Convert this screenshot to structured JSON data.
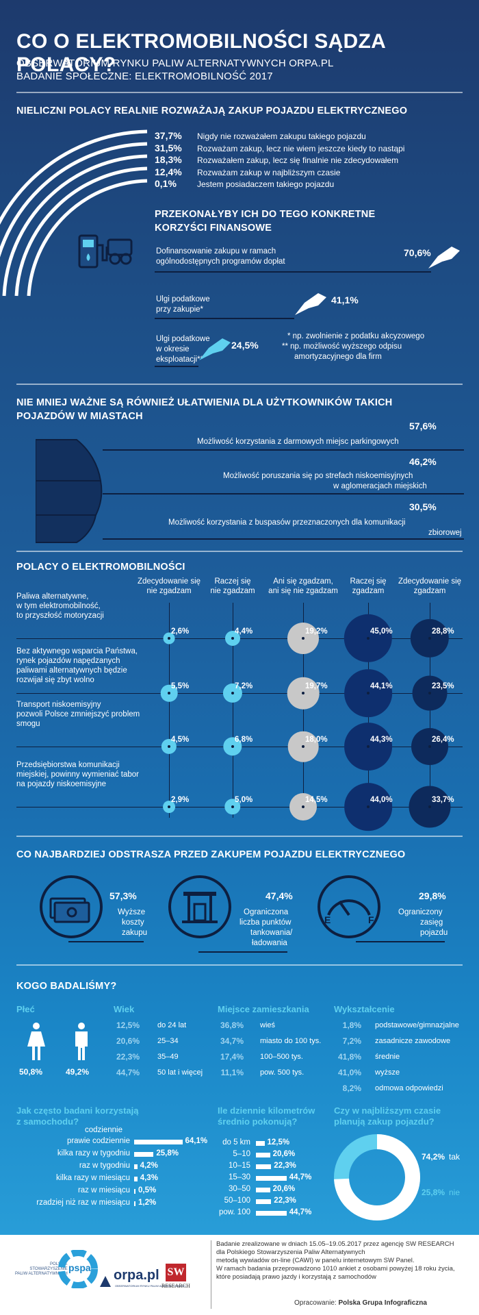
{
  "header": {
    "title": "CO O ELEKTROMOBILNOŚCI SĄDZA POLACY?",
    "line1": "OBSERWATORIUM RYNKU PALIW ALTERNATYWNYCH ORPA.PL",
    "line2": "BADANIE SPOŁECZNE: ELEKTROMOBILNOŚĆ 2017"
  },
  "colors": {
    "dark": "#0d1f40",
    "navy": "#12305e",
    "cyan": "#5fd0ef",
    "grey": "#c8c8c8",
    "deep": "#0e2f6e"
  },
  "section1": {
    "title": "NIELICZNI POLACY REALNIE ROZWAŻAJĄ ZAKUP POJAZDU ELEKTRYCZNEGO",
    "items": [
      {
        "pct": "37,7%",
        "label": "Nigdy nie rozważałem zakupu takiego pojazdu"
      },
      {
        "pct": "31,5%",
        "label": "Rozważam zakup, lecz nie wiem jeszcze kiedy to nastąpi"
      },
      {
        "pct": "18,3%",
        "label": "Rozważałem zakup, lecz się finalnie nie zdecydowałem"
      },
      {
        "pct": "12,4%",
        "label": "Rozważam zakup w najbliższym czasie"
      },
      {
        "pct": "0,1%",
        "label": "Jestem posiadaczem takiego pojazdu"
      }
    ]
  },
  "section2": {
    "title_line1": "PRZEKONAŁYBY ICH DO TEGO KONKRETNE",
    "title_line2": "KORZYŚCI FINANSOWE",
    "items": [
      {
        "pct": "70,6%",
        "label1": "Dofinansowanie zakupu w ramach",
        "label2": "ogólnodostępnych programów dopłat",
        "label3": ""
      },
      {
        "pct": "41,1%",
        "label1": "Ulgi podatkowe",
        "label2": "przy zakupie*",
        "label3": ""
      },
      {
        "pct": "24,5%",
        "label1": "Ulgi podatkowe",
        "label2": "w okresie",
        "label3": "eksploatacji**"
      }
    ],
    "note1": "* np. zwolnienie z podatku akcyzowego",
    "note2a": "** np. możliwość wyższego odpisu",
    "note2b": "amortyzacyjnego dla firm"
  },
  "section3": {
    "title_line1": "NIE MNIEJ WAŻNE SĄ RÓWNIEŻ UŁATWIENIA DLA UŻYTKOWNIKÓW TAKICH",
    "title_line2": "POJAZDÓW W MIASTACH",
    "items": [
      {
        "pct": "57,6%",
        "label1": "Możliwość korzystania z darmowych miejsc parkingowych",
        "label2": ""
      },
      {
        "pct": "46,2%",
        "label1": "Możliwość poruszania się po strefach niskoemisyjnych",
        "label2": "w aglomeracjach miejskich"
      },
      {
        "pct": "30,5%",
        "label1": "Możliwość korzystania z buspasów przeznaczonych dla komunikacji",
        "label2": "zbiorowej"
      }
    ]
  },
  "section4": {
    "title": "POLACY O ELEKTROMOBILNOŚCI",
    "columns": [
      {
        "l1": "Zdecydowanie się",
        "l2": "nie zgadzam"
      },
      {
        "l1": "Raczej się",
        "l2": "nie zgadzam"
      },
      {
        "l1": "Ani się zgadzam,",
        "l2": "ani się nie zgadzam"
      },
      {
        "l1": "Raczej się",
        "l2": "zgadzam"
      },
      {
        "l1": "Zdecydowanie się",
        "l2": "zgadzam"
      }
    ],
    "statements": [
      {
        "lines": [
          "Paliwa alternatywne,",
          "w tym elektromobilność,",
          "to przyszłość motoryzacji"
        ]
      },
      {
        "lines": [
          "Bez aktywnego wsparcia Państwa,",
          "rynek pojazdów napędzanych",
          "paliwami alternatywnych będzie",
          "rozwijał się zbyt wolno"
        ]
      },
      {
        "lines": [
          "Transport niskoemisyjny",
          "pozwoli Polsce zmniejszyć problem",
          "smogu"
        ]
      },
      {
        "lines": [
          "Przedsiębiorstwa komunikacji",
          "miejskiej, powinny wymieniać tabor",
          "na pojazdy niskoemisyjne"
        ]
      }
    ]
  },
  "chart_data": [
    {
      "type": "bar",
      "title": "NIELICZNI POLACY REALNIE ROZWAŻAJĄ ZAKUP POJAZDU ELEKTRYCZNEGO",
      "categories": [
        "Nigdy nie rozważałem zakupu takiego pojazdu",
        "Rozważam zakup, lecz nie wiem jeszcze kiedy to nastąpi",
        "Rozważałem zakup, lecz się finalnie nie zdecydowałem",
        "Rozważam zakup w najbliższym czasie",
        "Jestem posiadaczem takiego pojazdu"
      ],
      "values": [
        37.7,
        31.5,
        18.3,
        12.4,
        0.1
      ]
    },
    {
      "type": "bar",
      "title": "PRZEKONAŁYBY ICH DO TEGO KONKRETNE KORZYŚCI FINANSOWE",
      "categories": [
        "Dofinansowanie zakupu w ramach ogólnodostępnych programów dopłat",
        "Ulgi podatkowe przy zakupie*",
        "Ulgi podatkowe w okresie eksploatacji**"
      ],
      "values": [
        70.6,
        41.1,
        24.5
      ]
    },
    {
      "type": "bar",
      "title": "NIE MNIEJ WAŻNE SĄ RÓWNIEŻ UŁATWIENIA DLA UŻYTKOWNIKÓW TAKICH POJAZDÓW W MIASTACH",
      "categories": [
        "Możliwość korzystania z darmowych miejsc parkingowych",
        "Możliwość poruszania się po strefach niskoemisyjnych w aglomeracjach miejskich",
        "Możliwość korzystania z buspasów przeznaczonych dla komunikacji zbiorowej"
      ],
      "values": [
        57.6,
        46.2,
        30.5
      ]
    },
    {
      "type": "scatter",
      "title": "POLACY O ELEKTROMOBILNOŚCI",
      "categories": [
        "Zdecydowanie się nie zgadzam",
        "Raczej się nie zgadzam",
        "Ani się zgadzam, ani się nie zgadzam",
        "Raczej się zgadzam",
        "Zdecydowanie się zgadzam"
      ],
      "series": [
        {
          "values": [
            2.6,
            4.4,
            19.2,
            45.0,
            28.8
          ],
          "labels": [
            "2,6%",
            "4,4%",
            "19,2%",
            "45,0%",
            "28,8%"
          ]
        },
        {
          "values": [
            5.5,
            7.2,
            19.7,
            44.1,
            23.5
          ],
          "labels": [
            "5,5%",
            "7,2%",
            "19,7%",
            "44,1%",
            "23,5%"
          ]
        },
        {
          "values": [
            4.5,
            6.8,
            18.0,
            44.3,
            26.4
          ],
          "labels": [
            "4,5%",
            "6,8%",
            "18,0%",
            "44,3%",
            "26,4%"
          ]
        },
        {
          "values": [
            2.9,
            5.0,
            14.5,
            44.0,
            33.7
          ],
          "labels": [
            "2,9%",
            "5,0%",
            "14,5%",
            "44,0%",
            "33,7%"
          ]
        }
      ]
    },
    {
      "type": "bar",
      "title": "CO NAJBARDZIEJ ODSTRASZA PRZED ZAKUPEM POJAZDU ELEKTRYCZNEGO",
      "categories": [
        "Wyższe koszty zakupu",
        "Ograniczona liczba punktów tankowania/ ładowania",
        "Ograniczony zasięg pojazdu"
      ],
      "values": [
        57.3,
        47.4,
        29.8
      ]
    },
    {
      "type": "bar",
      "title": "Jak często badani korzystają z samochodu?",
      "categories": [
        "codziennie prawie codziennie",
        "kilka razy w tygodniu",
        "raz w tygodniu",
        "kilka razy w miesiącu",
        "raz w miesiącu",
        "rzadziej niż raz w miesiącu"
      ],
      "values": [
        64.1,
        25.8,
        4.2,
        4.3,
        0.5,
        1.2
      ]
    },
    {
      "type": "bar",
      "title": "Ile dziennie kilometrów średnio pokonują?",
      "categories": [
        "do 5 km",
        "5–10",
        "10–15",
        "15–30",
        "30–50",
        "50–100",
        "pow. 100"
      ],
      "values": [
        12.5,
        20.6,
        22.3,
        44.7,
        20.6,
        22.3,
        44.7
      ]
    },
    {
      "type": "pie",
      "title": "Czy w najbliższym czasie planują zakup pojazdu?",
      "categories": [
        "tak",
        "nie"
      ],
      "values": [
        74.2,
        25.8
      ]
    }
  ],
  "section5": {
    "title": "CO NAJBARDZIEJ ODSTRASZA PRZED ZAKUPEM POJAZDU ELEKTRYCZNEGO",
    "items": [
      {
        "pct": "57,3%",
        "lines": [
          "Wyższe",
          "koszty",
          "zakupu"
        ]
      },
      {
        "pct": "47,4%",
        "lines": [
          "Ograniczona",
          "liczba punktów",
          "tankowania/",
          "ładowania"
        ]
      },
      {
        "pct": "29,8%",
        "lines": [
          "Ograniczony",
          "zasięg",
          "pojazdu"
        ]
      }
    ]
  },
  "survey": {
    "title": "KOGO BADALIŚMY?",
    "gender": {
      "head": "Płeć",
      "female": "50,8%",
      "male": "49,2%"
    },
    "age": {
      "head": "Wiek",
      "rows": [
        [
          "12,5%",
          "do 24 lat"
        ],
        [
          "20,6%",
          "25–34"
        ],
        [
          "22,3%",
          "35–49"
        ],
        [
          "44,7%",
          "50 lat i więcej"
        ]
      ]
    },
    "place": {
      "head": "Miejsce zamieszkania",
      "rows": [
        [
          "36,8%",
          "wieś"
        ],
        [
          "34,7%",
          "miasto do 100 tys."
        ],
        [
          "17,4%",
          "100–500 tys."
        ],
        [
          "11,1%",
          "pow. 500 tys."
        ]
      ]
    },
    "edu": {
      "head": "Wykształcenie",
      "rows": [
        [
          "1,8%",
          "podstawowe/gimnazjalne"
        ],
        [
          "7,2%",
          "zasadnicze zawodowe"
        ],
        [
          "41,8%",
          "średnie"
        ],
        [
          "41,0%",
          "wyższe"
        ],
        [
          "8,2%",
          "odmowa odpowiedzi"
        ]
      ]
    },
    "usage": {
      "head1": "Jak często badani korzystają",
      "head2": "z samochodu?",
      "top": "codziennie",
      "rows": [
        [
          "prawie codziennie",
          "64,1%"
        ],
        [
          "kilka razy w tygodniu",
          "25,8%"
        ],
        [
          "raz w tygodniu",
          "4,2%"
        ],
        [
          "kilka razy w miesiącu",
          "4,3%"
        ],
        [
          "raz w miesiącu",
          "0,5%"
        ],
        [
          "rzadziej niż raz w miesiącu",
          "1,2%"
        ]
      ]
    },
    "km": {
      "head1": "Ile dziennie kilometrów",
      "head2": "średnio pokonują?",
      "rows": [
        [
          "do 5 km",
          "12,5%"
        ],
        [
          "5–10",
          "20,6%"
        ],
        [
          "10–15",
          "22,3%"
        ],
        [
          "15–30",
          "44,7%"
        ],
        [
          "30–50",
          "20,6%"
        ],
        [
          "50–100",
          "22,3%"
        ],
        [
          "pow. 100",
          "44,7%"
        ]
      ]
    },
    "plan": {
      "head1": "Czy w najbliższym czasie",
      "head2": "planują zakup pojazdu?",
      "yes_pct": "74,2%",
      "yes": "tak",
      "no_pct": "25,8%",
      "no": "nie"
    }
  },
  "footer": {
    "logo1_lines": [
      "POLSKIE",
      "STOWARZYSZENIE",
      "PALIW ALTERNATYWNYCH"
    ],
    "logo1_name": "pspa",
    "logo2": "orpa.pl",
    "logo2_sub": "OBSERWATORIUM RYNKU PALIW ALTERNATYWNYCH",
    "logo3_top": "SW",
    "logo3_bottom": "RESEARCH",
    "text": [
      "Badanie zrealizowane w dniach 15.05–19.05.2017 przez agencję SW RESEARCH",
      "dla Polskiego Stowarzyszenia Paliw Alternatywnych",
      "metodą wywiadów on-line (CAWI) w panelu internetowym SW Panel.",
      "W ramach badania przeprowadzono 1010 ankiet z osobami powyżej 18 roku życia,",
      "które posiadają prawo jazdy i korzystają z samochodów"
    ],
    "credit_label": "Opracowanie:",
    "credit_name": "Polska Grupa Infograficzna"
  }
}
